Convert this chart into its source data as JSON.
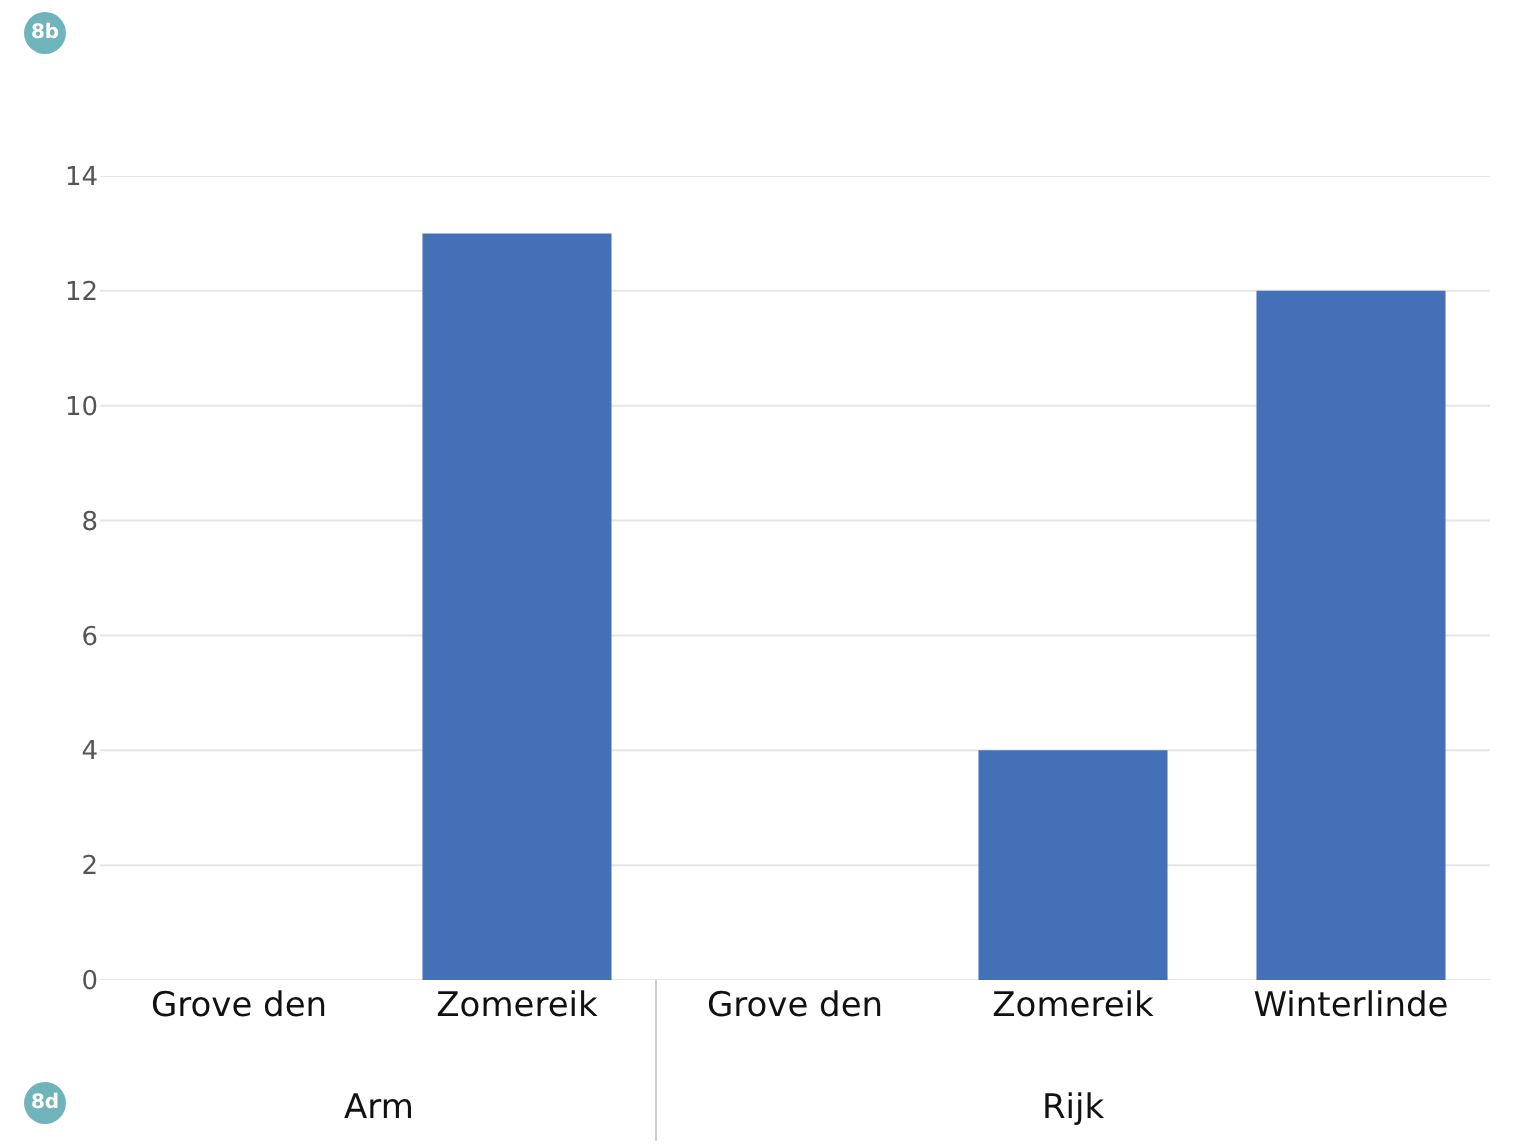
{
  "chart_data": {
    "type": "bar",
    "categories": [
      "Grove den",
      "Zomereik",
      "Grove den",
      "Zomereik",
      "Winterlinde"
    ],
    "values": [
      0,
      13,
      0,
      4,
      12
    ],
    "color": "#4470b7",
    "ylim": [
      0,
      14
    ],
    "yticks": [
      0,
      2,
      4,
      6,
      8,
      10,
      12,
      14
    ],
    "grid": "y",
    "annotations": [
      "8b",
      "8d",
      "Arm",
      "Rijk"
    ]
  }
}
